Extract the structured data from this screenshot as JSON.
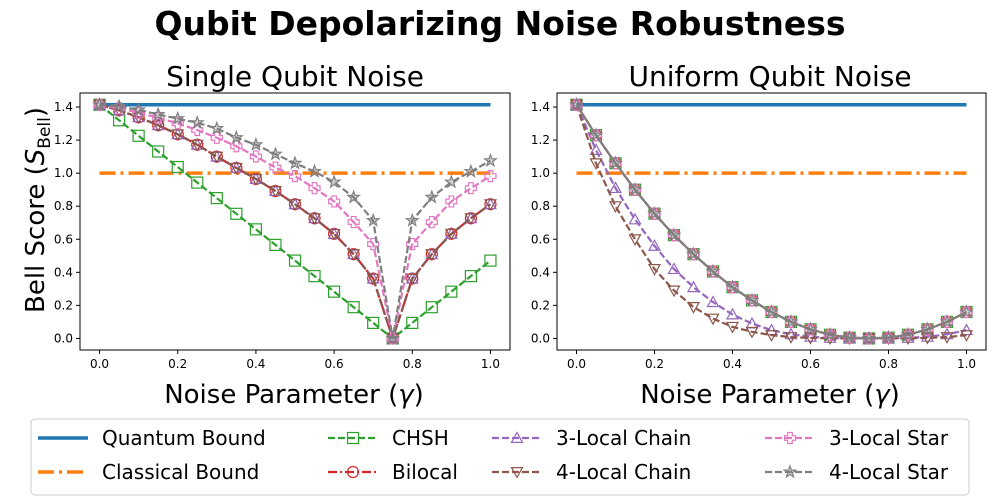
{
  "suptitle": "Qubit Depolarizing Noise Robustness",
  "colors": {
    "quantum": "#1f77b4",
    "classical": "#ff7f0e",
    "chsh": "#2ca02c",
    "bilocal": "#d62728",
    "local3_chain": "#9467bd",
    "local4_chain": "#8c564b",
    "local3_star": "#e377c2",
    "local4_star": "#7f7f7f"
  },
  "legend": {
    "placement": "bottom",
    "entries": [
      "Quantum Bound",
      "Classical Bound",
      "CHSH",
      "Bilocal",
      "3-Local Chain",
      "4-Local Chain",
      "3-Local Star",
      "4-Local Star"
    ]
  },
  "chart_data": [
    {
      "type": "line",
      "title": "Single Qubit Noise",
      "xlabel": "Noise Parameter (γ)",
      "ylabel": "Bell Score (S_Bell)",
      "xlim": [
        -0.05,
        1.05
      ],
      "ylim": [
        -0.07,
        1.485
      ],
      "xticks": [
        "0.0",
        "0.2",
        "0.4",
        "0.6",
        "0.8",
        "1.0"
      ],
      "yticks": [
        "0.0",
        "0.2",
        "0.4",
        "0.6",
        "0.8",
        "1.0",
        "1.2",
        "1.4"
      ],
      "grid": false,
      "x": [
        0,
        0.05,
        0.1,
        0.15,
        0.2,
        0.25,
        0.3,
        0.35,
        0.4,
        0.45,
        0.5,
        0.55,
        0.6,
        0.65,
        0.7,
        0.75,
        0.8,
        0.85,
        0.9,
        0.95,
        1.0
      ],
      "series": [
        {
          "name": "Quantum Bound",
          "style": "solid",
          "values": [
            1.414,
            1.414,
            1.414,
            1.414,
            1.414,
            1.414,
            1.414,
            1.414,
            1.414,
            1.414,
            1.414,
            1.414,
            1.414,
            1.414,
            1.414,
            1.414,
            1.414,
            1.414,
            1.414,
            1.414,
            1.414
          ]
        },
        {
          "name": "Classical Bound",
          "style": "dashdot",
          "values": [
            1.0,
            1.0,
            1.0,
            1.0,
            1.0,
            1.0,
            1.0,
            1.0,
            1.0,
            1.0,
            1.0,
            1.0,
            1.0,
            1.0,
            1.0,
            1.0,
            1.0,
            1.0,
            1.0,
            1.0,
            1.0
          ]
        },
        {
          "name": "CHSH",
          "style": "dashed",
          "marker": "square",
          "values": [
            1.414,
            1.32,
            1.226,
            1.131,
            1.037,
            0.943,
            0.849,
            0.754,
            0.66,
            0.566,
            0.471,
            0.377,
            0.283,
            0.189,
            0.094,
            0.0,
            0.094,
            0.189,
            0.283,
            0.377,
            0.471
          ]
        },
        {
          "name": "Bilocal",
          "style": "dashdot",
          "marker": "circle",
          "values": [
            1.414,
            1.38,
            1.338,
            1.29,
            1.235,
            1.172,
            1.1,
            1.032,
            0.965,
            0.892,
            0.812,
            0.727,
            0.633,
            0.51,
            0.362,
            0.0,
            0.362,
            0.51,
            0.633,
            0.727,
            0.812
          ]
        },
        {
          "name": "3-Local Chain",
          "style": "dashed",
          "marker": "triangle-up",
          "values": [
            1.414,
            1.38,
            1.338,
            1.29,
            1.235,
            1.172,
            1.1,
            1.032,
            0.965,
            0.892,
            0.812,
            0.727,
            0.633,
            0.51,
            0.362,
            0.0,
            0.362,
            0.51,
            0.633,
            0.727,
            0.812
          ]
        },
        {
          "name": "4-Local Chain",
          "style": "dashed",
          "marker": "triangle-down",
          "values": [
            1.414,
            1.38,
            1.338,
            1.29,
            1.235,
            1.172,
            1.1,
            1.032,
            0.965,
            0.892,
            0.812,
            0.727,
            0.633,
            0.51,
            0.362,
            0.0,
            0.362,
            0.51,
            0.633,
            0.727,
            0.812
          ]
        },
        {
          "name": "3-Local Star",
          "style": "dashed",
          "marker": "plus",
          "values": [
            1.414,
            1.393,
            1.366,
            1.335,
            1.301,
            1.261,
            1.214,
            1.163,
            1.101,
            1.034,
            0.982,
            0.909,
            0.829,
            0.704,
            0.571,
            0.0,
            0.571,
            0.704,
            0.829,
            0.909,
            0.982
          ]
        },
        {
          "name": "4-Local Star",
          "style": "dashed",
          "marker": "star",
          "values": [
            1.414,
            1.404,
            1.383,
            1.355,
            1.33,
            1.305,
            1.27,
            1.215,
            1.172,
            1.115,
            1.06,
            1.01,
            0.946,
            0.854,
            0.713,
            0.0,
            0.713,
            0.854,
            0.946,
            1.01,
            1.075
          ]
        }
      ]
    },
    {
      "type": "line",
      "title": "Uniform Qubit Noise",
      "xlabel": "Noise Parameter (γ)",
      "ylabel": "",
      "xlim": [
        -0.05,
        1.05
      ],
      "ylim": [
        -0.07,
        1.485
      ],
      "xticks": [
        "0.0",
        "0.2",
        "0.4",
        "0.6",
        "0.8",
        "1.0"
      ],
      "yticks": [
        "0.0",
        "0.2",
        "0.4",
        "0.6",
        "0.8",
        "1.0",
        "1.2",
        "1.4"
      ],
      "grid": false,
      "x": [
        0,
        0.05,
        0.1,
        0.15,
        0.2,
        0.25,
        0.3,
        0.35,
        0.4,
        0.45,
        0.5,
        0.55,
        0.6,
        0.65,
        0.7,
        0.75,
        0.8,
        0.85,
        0.9,
        0.95,
        1.0
      ],
      "series": [
        {
          "name": "Quantum Bound",
          "style": "solid",
          "values": [
            1.414,
            1.414,
            1.414,
            1.414,
            1.414,
            1.414,
            1.414,
            1.414,
            1.414,
            1.414,
            1.414,
            1.414,
            1.414,
            1.414,
            1.414,
            1.414,
            1.414,
            1.414,
            1.414,
            1.414,
            1.414
          ]
        },
        {
          "name": "Classical Bound",
          "style": "dashdot",
          "values": [
            1.0,
            1.0,
            1.0,
            1.0,
            1.0,
            1.0,
            1.0,
            1.0,
            1.0,
            1.0,
            1.0,
            1.0,
            1.0,
            1.0,
            1.0,
            1.0,
            1.0,
            1.0,
            1.0,
            1.0,
            1.0
          ]
        },
        {
          "name": "CHSH",
          "style": "dashed",
          "marker": "square",
          "values": [
            1.414,
            1.23,
            1.06,
            0.9,
            0.755,
            0.625,
            0.51,
            0.405,
            0.31,
            0.23,
            0.16,
            0.1,
            0.055,
            0.022,
            0.005,
            0.0,
            0.005,
            0.022,
            0.055,
            0.1,
            0.16
          ]
        },
        {
          "name": "Bilocal",
          "style": "dashdot",
          "marker": "circle",
          "values": [
            1.414,
            1.23,
            1.06,
            0.9,
            0.755,
            0.625,
            0.51,
            0.405,
            0.31,
            0.23,
            0.16,
            0.1,
            0.055,
            0.022,
            0.005,
            0.0,
            0.005,
            0.022,
            0.055,
            0.1,
            0.16
          ]
        },
        {
          "name": "3-Local Chain",
          "style": "dashed",
          "marker": "triangle-up",
          "values": [
            1.414,
            1.14,
            0.91,
            0.72,
            0.56,
            0.42,
            0.31,
            0.22,
            0.145,
            0.09,
            0.05,
            0.025,
            0.01,
            0.003,
            0.0,
            0.0,
            0.0,
            0.003,
            0.01,
            0.025,
            0.05
          ]
        },
        {
          "name": "4-Local Chain",
          "style": "dashed",
          "marker": "triangle-down",
          "values": [
            1.414,
            1.06,
            0.8,
            0.6,
            0.42,
            0.29,
            0.19,
            0.12,
            0.07,
            0.04,
            0.02,
            0.008,
            0.003,
            0.001,
            0.0,
            0.0,
            0.0,
            0.001,
            0.003,
            0.008,
            0.02
          ]
        },
        {
          "name": "3-Local Star",
          "style": "dashed",
          "marker": "plus",
          "values": [
            1.414,
            1.23,
            1.06,
            0.9,
            0.755,
            0.625,
            0.51,
            0.405,
            0.31,
            0.23,
            0.16,
            0.1,
            0.055,
            0.022,
            0.005,
            0.0,
            0.005,
            0.022,
            0.055,
            0.1,
            0.16
          ]
        },
        {
          "name": "4-Local Star",
          "style": "solid",
          "marker": "star",
          "values": [
            1.414,
            1.23,
            1.06,
            0.9,
            0.755,
            0.625,
            0.51,
            0.405,
            0.31,
            0.23,
            0.16,
            0.1,
            0.055,
            0.022,
            0.005,
            0.0,
            0.005,
            0.022,
            0.055,
            0.1,
            0.16
          ]
        }
      ]
    }
  ]
}
